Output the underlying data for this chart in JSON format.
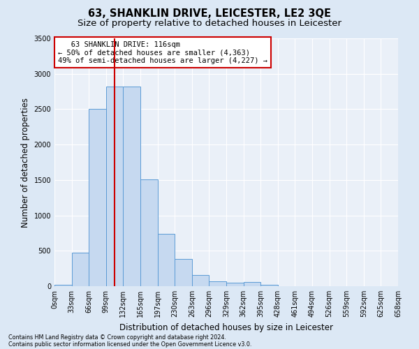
{
  "title": "63, SHANKLIN DRIVE, LEICESTER, LE2 3QE",
  "subtitle": "Size of property relative to detached houses in Leicester",
  "xlabel": "Distribution of detached houses by size in Leicester",
  "ylabel": "Number of detached properties",
  "bin_labels": [
    "0sqm",
    "33sqm",
    "66sqm",
    "99sqm",
    "132sqm",
    "165sqm",
    "197sqm",
    "230sqm",
    "263sqm",
    "296sqm",
    "329sqm",
    "362sqm",
    "395sqm",
    "428sqm",
    "461sqm",
    "494sqm",
    "526sqm",
    "559sqm",
    "592sqm",
    "625sqm",
    "658sqm"
  ],
  "bar_values": [
    20,
    470,
    2500,
    2820,
    2820,
    1510,
    740,
    380,
    155,
    70,
    50,
    55,
    20,
    0,
    0,
    0,
    0,
    0,
    0,
    0
  ],
  "bar_color": "#c6d9f0",
  "bar_edge_color": "#5b9bd5",
  "property_line_bin": 3.515,
  "annotation_line1": "   63 SHANKLIN DRIVE: 116sqm",
  "annotation_line2": "← 50% of detached houses are smaller (4,363)",
  "annotation_line3": "49% of semi-detached houses are larger (4,227) →",
  "annotation_box_color": "#ffffff",
  "annotation_box_edge_color": "#cc0000",
  "vline_color": "#cc0000",
  "ylim": [
    0,
    3500
  ],
  "yticks": [
    0,
    500,
    1000,
    1500,
    2000,
    2500,
    3000,
    3500
  ],
  "footnote1": "Contains HM Land Registry data © Crown copyright and database right 2024.",
  "footnote2": "Contains public sector information licensed under the Open Government Licence v3.0.",
  "bg_color": "#dce8f5",
  "plot_bg_color": "#eaf0f8",
  "grid_color": "#ffffff",
  "title_fontsize": 10.5,
  "subtitle_fontsize": 9.5,
  "axis_label_fontsize": 8.5,
  "tick_fontsize": 7,
  "annot_fontsize": 7.5
}
